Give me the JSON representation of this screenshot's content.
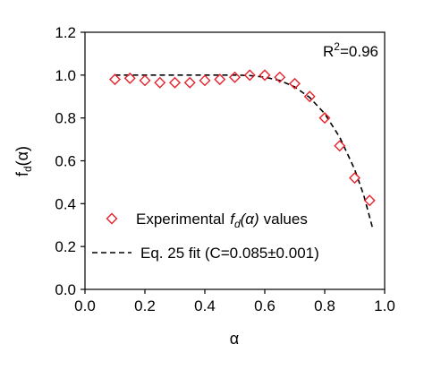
{
  "chart_data": {
    "type": "scatter",
    "xlabel": "α",
    "ylabel": {
      "base": "f",
      "sub": "d",
      "rest": "(α)"
    },
    "xlim": [
      0,
      1
    ],
    "ylim": [
      0,
      1.2
    ],
    "x_ticks": [
      "0.0",
      "0.2",
      "0.4",
      "0.6",
      "0.8",
      "1.0"
    ],
    "y_ticks": [
      "0.0",
      "0.2",
      "0.4",
      "0.6",
      "0.8",
      "1.0",
      "1.2"
    ],
    "grid": false,
    "legend_position": "bottom-left",
    "annotation": {
      "prefix": "R",
      "sup": "2",
      "suffix": "=0.96"
    },
    "series": [
      {
        "kind": "markers",
        "marker": "diamond-open",
        "color": "#e8202a",
        "legend": {
          "pre": "Experimental",
          "math": "f",
          "math_sub": "d",
          "math_rest": "(α)",
          "post": "values"
        },
        "x": [
          0.1,
          0.15,
          0.2,
          0.25,
          0.3,
          0.35,
          0.4,
          0.45,
          0.5,
          0.55,
          0.6,
          0.65,
          0.7,
          0.75,
          0.8,
          0.85,
          0.9,
          0.95
        ],
        "y": [
          0.98,
          0.985,
          0.975,
          0.965,
          0.965,
          0.965,
          0.975,
          0.98,
          0.99,
          1.0,
          1.0,
          0.99,
          0.96,
          0.9,
          0.8,
          0.67,
          0.52,
          0.415
        ]
      },
      {
        "kind": "line",
        "style": "dashed",
        "color": "#000000",
        "legend_text": "Eq. 25 fit (C=0.085±0.001)",
        "x": [
          0.1,
          0.2,
          0.3,
          0.4,
          0.5,
          0.55,
          0.6,
          0.65,
          0.7,
          0.75,
          0.8,
          0.85,
          0.9,
          0.93,
          0.96
        ],
        "y": [
          1.0,
          1.0,
          1.0,
          1.0,
          1.0,
          0.998,
          0.99,
          0.975,
          0.945,
          0.895,
          0.82,
          0.71,
          0.56,
          0.44,
          0.285
        ]
      }
    ]
  }
}
